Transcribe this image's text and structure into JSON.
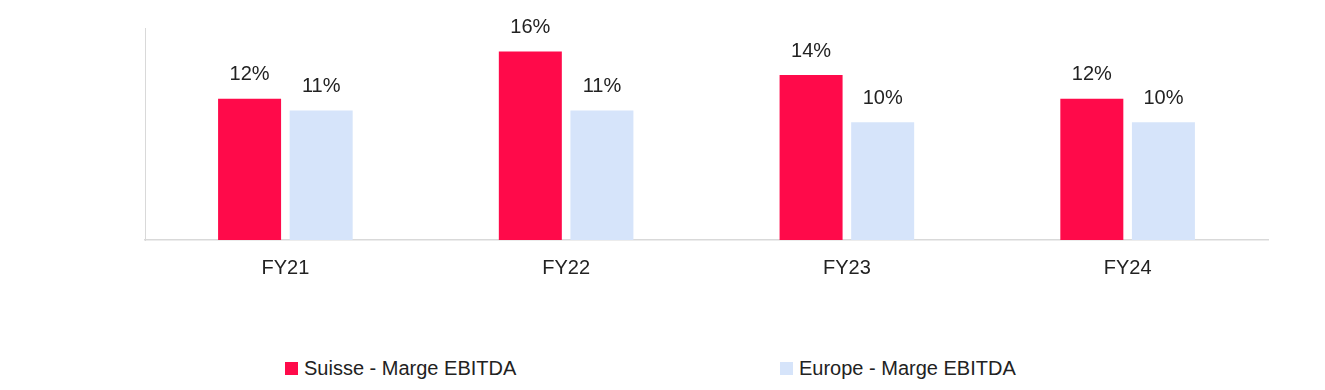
{
  "chart_data": {
    "type": "bar",
    "categories": [
      "FY21",
      "FY22",
      "FY23",
      "FY24"
    ],
    "series": [
      {
        "name": "Suisse - Marge EBITDA",
        "color": "#ff0a4a",
        "values": [
          12,
          16,
          14,
          12
        ],
        "value_labels": [
          "12%",
          "16%",
          "14%",
          "12%"
        ]
      },
      {
        "name": "Europe - Marge EBITDA",
        "color": "#d6e4fa",
        "values": [
          11,
          11,
          10,
          10
        ],
        "value_labels": [
          "11%",
          "11%",
          "10%",
          "10%"
        ]
      }
    ],
    "ylim": [
      0,
      18
    ],
    "grid": false,
    "legend": "bottom",
    "data_labels": true,
    "tick_labels": "x"
  }
}
